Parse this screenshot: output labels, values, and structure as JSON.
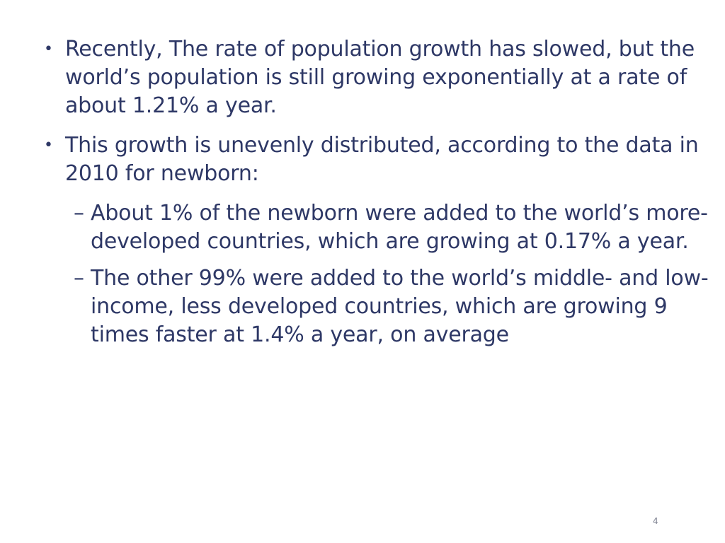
{
  "slide": {
    "bullets": [
      {
        "marker": "•",
        "text": "Recently, The rate of population growth has slowed, but the world’s population is still growing exponentially at a rate of about 1.21% a year."
      },
      {
        "marker": "•",
        "text": "This growth is unevenly distributed, according to the data in 2010 for newborn:",
        "subitems": [
          {
            "marker": "–",
            "text": "About 1% of the newborn were added to the world’s more-developed countries, which are growing at 0.17% a year."
          },
          {
            "marker": "–",
            "text": "The other 99% were added to the world’s middle- and low-income, less developed countries, which are growing 9 times faster at 1.4% a year, on average"
          }
        ]
      }
    ],
    "page_number": "4"
  },
  "colors": {
    "text": "#2E3866",
    "background": "#FFFFFF"
  }
}
